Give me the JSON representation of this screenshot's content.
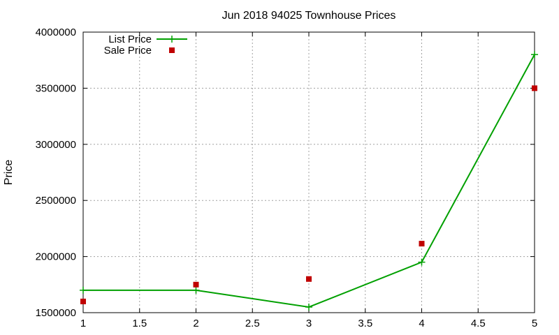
{
  "chart_data": {
    "type": "line",
    "title": "Jun 2018 94025 Townhouse Prices",
    "xlabel": "",
    "ylabel": "Price",
    "xlim": [
      1,
      5
    ],
    "ylim": [
      1500000,
      4000000
    ],
    "xticks": [
      1,
      1.5,
      2,
      2.5,
      3,
      3.5,
      4,
      4.5,
      5
    ],
    "xtick_labels": [
      "1",
      "1.5",
      "2",
      "2.5",
      "3",
      "3.5",
      "4",
      "4.5",
      "5"
    ],
    "yticks": [
      1500000,
      2000000,
      2500000,
      3000000,
      3500000,
      4000000
    ],
    "ytick_labels": [
      "1500000",
      "2000000",
      "2500000",
      "3000000",
      "3500000",
      "4000000"
    ],
    "grid": true,
    "legend_position": "top-left",
    "series": [
      {
        "name": "List Price",
        "style": "linespoints",
        "marker": "plus",
        "color": "#00a000",
        "x": [
          1,
          2,
          3,
          4,
          5
        ],
        "y": [
          1700000,
          1700000,
          1550000,
          1950000,
          3800000
        ]
      },
      {
        "name": "Sale Price",
        "style": "points",
        "marker": "square",
        "color": "#c00000",
        "x": [
          1,
          2,
          3,
          4,
          5
        ],
        "y": [
          1600000,
          1750000,
          1800000,
          2115000,
          3500000
        ]
      }
    ]
  }
}
